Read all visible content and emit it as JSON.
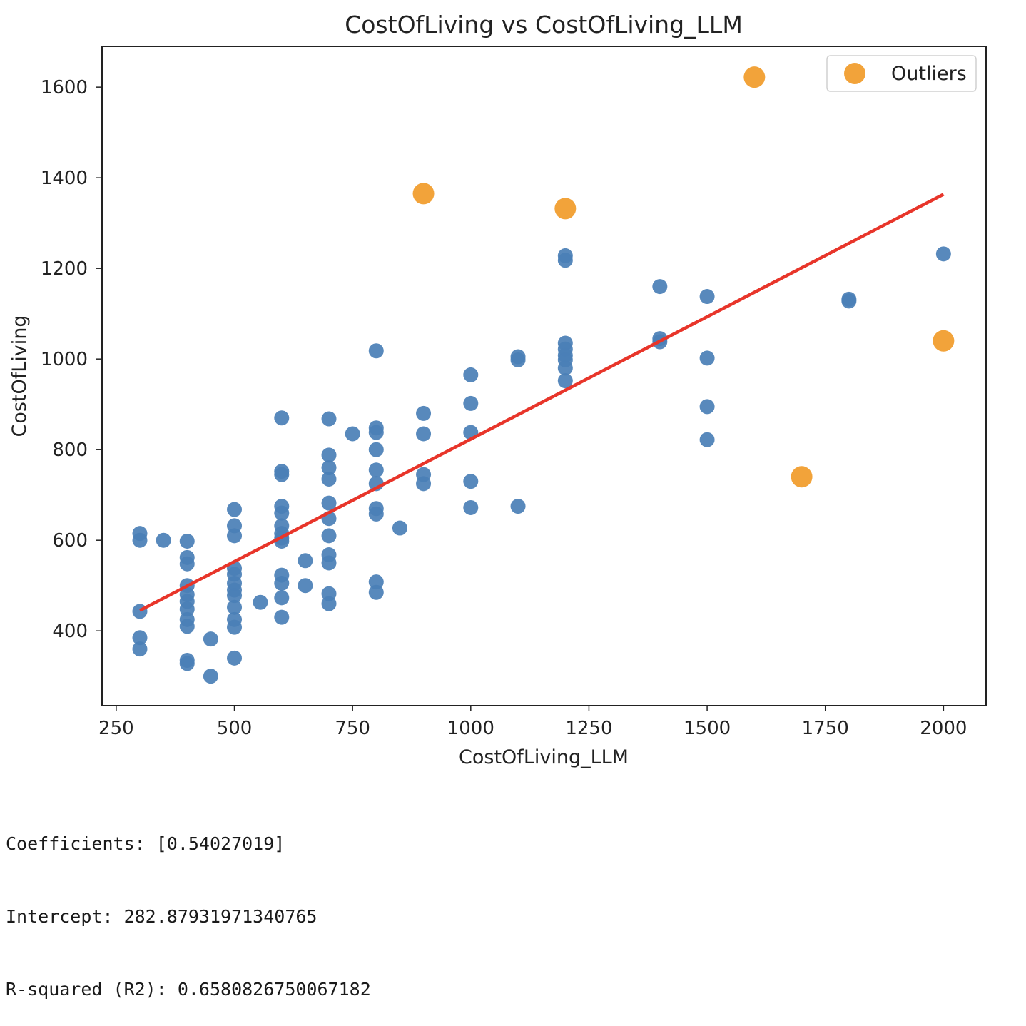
{
  "chart_data": {
    "type": "scatter",
    "title": "CostOfLiving vs CostOfLiving_LLM",
    "xlabel": "CostOfLiving_LLM",
    "ylabel": "CostOfLiving",
    "xlim": [
      220,
      2090
    ],
    "ylim": [
      235,
      1690
    ],
    "xticks": [
      250,
      500,
      750,
      1000,
      1250,
      1500,
      1750,
      2000
    ],
    "yticks": [
      400,
      600,
      800,
      1000,
      1200,
      1400,
      1600
    ],
    "legend": {
      "position": "top-right",
      "entries": [
        "Outliers"
      ]
    },
    "grid": false,
    "colors": {
      "points": "#4a7fb6",
      "outliers": "#f2a33a",
      "regression": "#e8352a"
    },
    "series": [
      {
        "role": "points",
        "points": [
          [
            300,
            615
          ],
          [
            300,
            600
          ],
          [
            300,
            443
          ],
          [
            300,
            385
          ],
          [
            300,
            360
          ],
          [
            350,
            600
          ],
          [
            400,
            598
          ],
          [
            400,
            562
          ],
          [
            400,
            548
          ],
          [
            400,
            500
          ],
          [
            400,
            480
          ],
          [
            400,
            465
          ],
          [
            400,
            448
          ],
          [
            400,
            425
          ],
          [
            400,
            410
          ],
          [
            400,
            335
          ],
          [
            400,
            328
          ],
          [
            450,
            382
          ],
          [
            450,
            300
          ],
          [
            500,
            668
          ],
          [
            500,
            632
          ],
          [
            500,
            610
          ],
          [
            500,
            538
          ],
          [
            500,
            525
          ],
          [
            500,
            505
          ],
          [
            500,
            490
          ],
          [
            500,
            478
          ],
          [
            500,
            452
          ],
          [
            500,
            425
          ],
          [
            500,
            408
          ],
          [
            500,
            340
          ],
          [
            555,
            463
          ],
          [
            600,
            870
          ],
          [
            600,
            752
          ],
          [
            600,
            745
          ],
          [
            600,
            675
          ],
          [
            600,
            660
          ],
          [
            600,
            632
          ],
          [
            600,
            615
          ],
          [
            600,
            605
          ],
          [
            600,
            598
          ],
          [
            600,
            523
          ],
          [
            600,
            505
          ],
          [
            600,
            473
          ],
          [
            600,
            430
          ],
          [
            650,
            555
          ],
          [
            650,
            500
          ],
          [
            700,
            868
          ],
          [
            700,
            788
          ],
          [
            700,
            760
          ],
          [
            700,
            735
          ],
          [
            700,
            682
          ],
          [
            700,
            648
          ],
          [
            700,
            610
          ],
          [
            700,
            568
          ],
          [
            700,
            550
          ],
          [
            700,
            482
          ],
          [
            700,
            460
          ],
          [
            750,
            835
          ],
          [
            800,
            1018
          ],
          [
            800,
            848
          ],
          [
            800,
            838
          ],
          [
            800,
            800
          ],
          [
            800,
            755
          ],
          [
            800,
            725
          ],
          [
            800,
            670
          ],
          [
            800,
            658
          ],
          [
            800,
            508
          ],
          [
            800,
            485
          ],
          [
            850,
            627
          ],
          [
            900,
            880
          ],
          [
            900,
            835
          ],
          [
            900,
            745
          ],
          [
            900,
            725
          ],
          [
            1000,
            965
          ],
          [
            1000,
            902
          ],
          [
            1000,
            838
          ],
          [
            1000,
            730
          ],
          [
            1000,
            672
          ],
          [
            1100,
            1005
          ],
          [
            1100,
            998
          ],
          [
            1100,
            675
          ],
          [
            1200,
            1228
          ],
          [
            1200,
            1218
          ],
          [
            1200,
            1035
          ],
          [
            1200,
            1022
          ],
          [
            1200,
            1008
          ],
          [
            1200,
            998
          ],
          [
            1200,
            980
          ],
          [
            1200,
            952
          ],
          [
            1400,
            1160
          ],
          [
            1400,
            1045
          ],
          [
            1400,
            1038
          ],
          [
            1500,
            1138
          ],
          [
            1500,
            1002
          ],
          [
            1500,
            895
          ],
          [
            1500,
            822
          ],
          [
            1800,
            1132
          ],
          [
            1800,
            1128
          ],
          [
            2000,
            1232
          ]
        ]
      },
      {
        "name": "Outliers",
        "role": "outliers",
        "points": [
          [
            900,
            1365
          ],
          [
            1200,
            1332
          ],
          [
            1600,
            1622
          ],
          [
            2000,
            1040
          ],
          [
            1700,
            740
          ]
        ]
      }
    ],
    "regression": {
      "coefficient": 0.54027019,
      "intercept": 282.87931971340765,
      "x_range": [
        300,
        2000
      ]
    }
  },
  "output": {
    "coefficients": "Coefficients: [0.54027019]",
    "intercept": "Intercept: 282.87931971340765",
    "r_squared": "R-squared (R2): 0.6580826750067182"
  }
}
